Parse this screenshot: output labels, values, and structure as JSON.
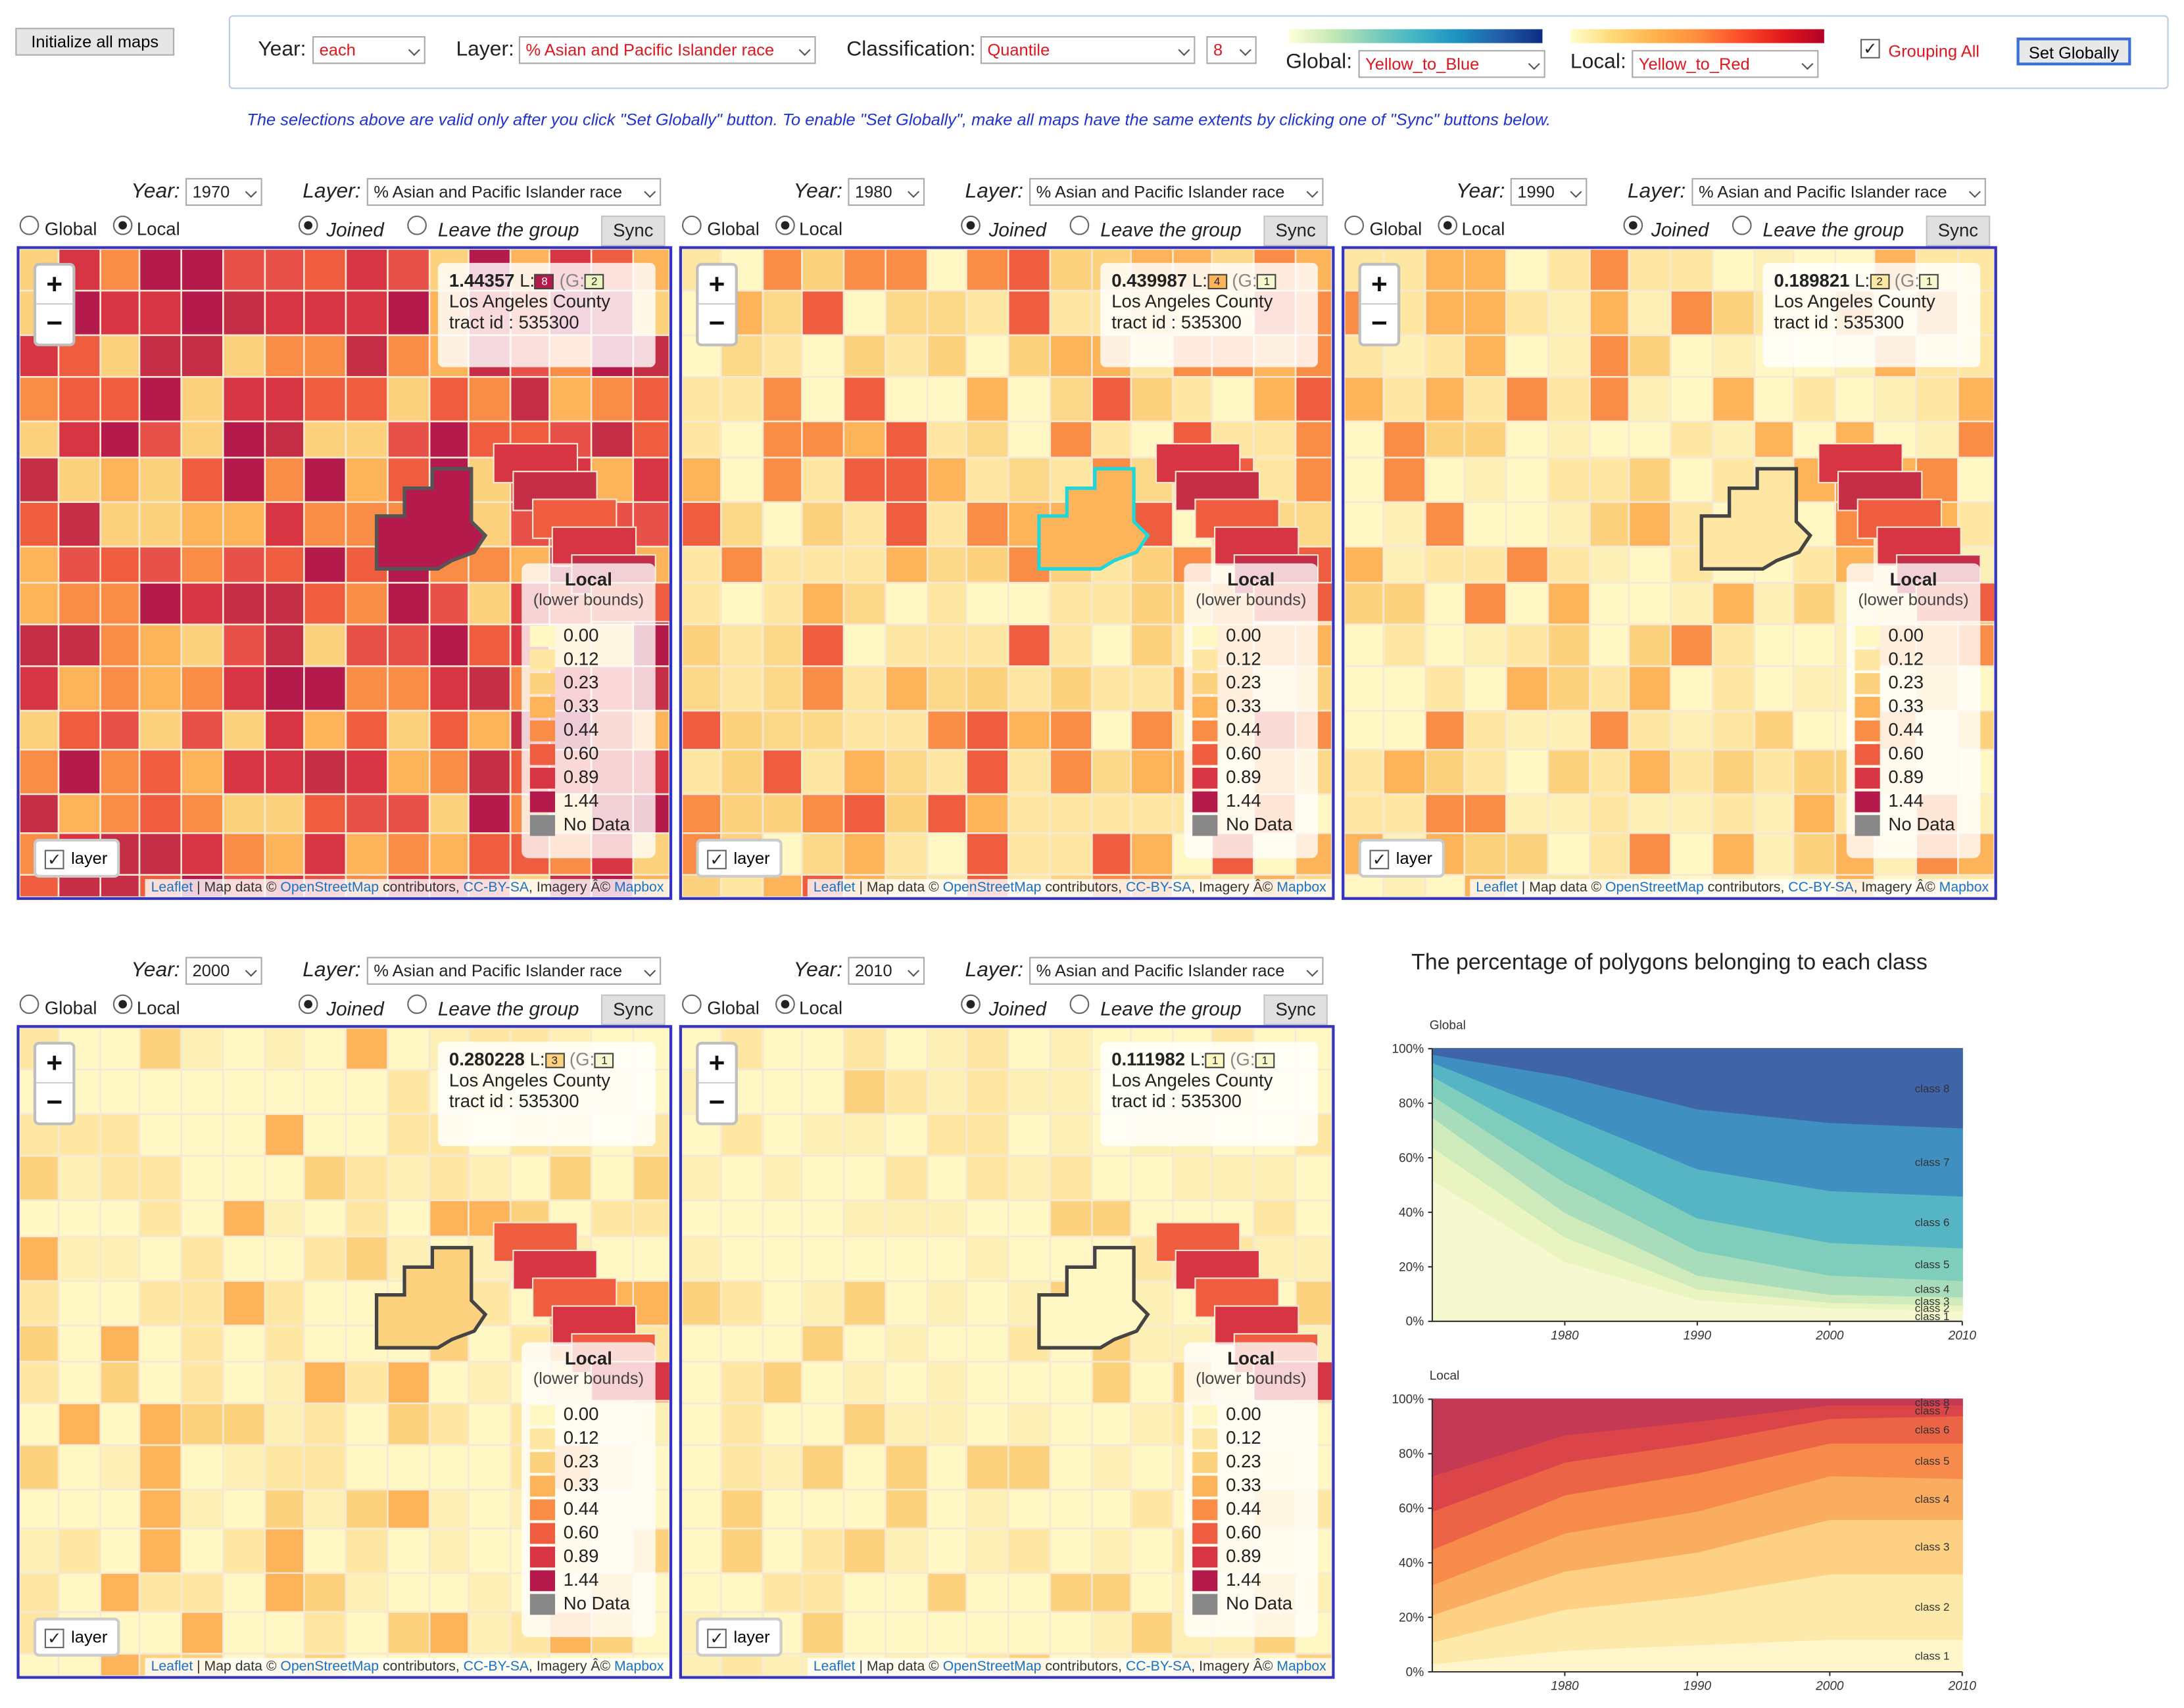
{
  "top": {
    "init_button": "Initialize all maps",
    "year_label": "Year:",
    "year_value": "each",
    "layer_label": "Layer:",
    "layer_value": "% Asian and Pacific Islander race",
    "class_label": "Classification:",
    "class_value": "Quantile",
    "class_count": "8",
    "global_label": "Global:",
    "global_value": "Yellow_to_Blue",
    "local_label": "Local:",
    "local_value": "Yellow_to_Red",
    "grouping_label": "Grouping All",
    "set_button": "Set Globally",
    "note": "The selections above are valid only after you click \"Set Globally\" button. To enable \"Set Globally\", make all maps have the same extents by clicking one of \"Sync\" buttons below."
  },
  "common": {
    "year_label": "Year:",
    "layer_label": "Layer:",
    "layer_value": "% Asian and Pacific Islander race",
    "global_radio": "Global",
    "local_radio": "Local",
    "joined_radio": "Joined",
    "leave_radio": "Leave the group",
    "sync_button": "Sync",
    "layer_control": "layer",
    "legend_title": "Local",
    "legend_subtitle": "(lower bounds)",
    "legend_values": [
      "0.00",
      "0.12",
      "0.23",
      "0.33",
      "0.44",
      "0.60",
      "0.89",
      "1.44",
      "No Data"
    ],
    "legend_colors": [
      "#fff7c4",
      "#fde7a3",
      "#fdd27e",
      "#fcb35a",
      "#f98d47",
      "#ee5d3f",
      "#d73543",
      "#b41b4c",
      "#888888"
    ],
    "info_county": "Los Angeles County",
    "info_tract": "tract id : 535300",
    "info_L": "L:",
    "info_G": "(G:",
    "attr_leaflet": "Leaflet",
    "attr_mid": " | Map data © ",
    "attr_osm": "OpenStreetMap",
    "attr_contrib": " contributors, ",
    "attr_cc": "CC-BY-SA",
    "attr_img": ", Imagery Â© ",
    "attr_mapbox": "Mapbox"
  },
  "maps": [
    {
      "year": "1970",
      "value": "1.44357",
      "l_class": "8",
      "g_class": "2"
    },
    {
      "year": "1980",
      "value": "0.439987",
      "l_class": "4",
      "g_class": "1"
    },
    {
      "year": "1990",
      "value": "0.189821",
      "l_class": "2",
      "g_class": "1"
    },
    {
      "year": "2000",
      "value": "0.280228",
      "l_class": "3",
      "g_class": "1"
    },
    {
      "year": "2010",
      "value": "0.111982",
      "l_class": "1",
      "g_class": "1"
    }
  ],
  "chart_data": [
    {
      "type": "area",
      "title": "The percentage of polygons belonging to each class",
      "subtitle": "Global",
      "x": [
        1970,
        1980,
        1990,
        2000,
        2010
      ],
      "ylim": [
        0,
        100
      ],
      "yticks": [
        "0%",
        "20%",
        "40%",
        "60%",
        "80%",
        "100%"
      ],
      "xticks": [
        "1980",
        "1990",
        "2000",
        "2010"
      ],
      "series": [
        {
          "name": "class 1",
          "values": [
            52,
            22,
            8,
            5,
            4
          ]
        },
        {
          "name": "class 2",
          "values": [
            12,
            9,
            4,
            2,
            2
          ]
        },
        {
          "name": "class 3",
          "values": [
            11,
            9,
            5,
            3,
            3
          ]
        },
        {
          "name": "class 4",
          "values": [
            8,
            11,
            9,
            7,
            6
          ]
        },
        {
          "name": "class 5",
          "values": [
            7,
            12,
            12,
            12,
            12
          ]
        },
        {
          "name": "class 6",
          "values": [
            5,
            13,
            18,
            19,
            19
          ]
        },
        {
          "name": "class 7",
          "values": [
            3,
            14,
            22,
            25,
            25
          ]
        },
        {
          "name": "class 8",
          "values": [
            2,
            10,
            22,
            27,
            29
          ]
        }
      ],
      "colors": [
        "#f6f9cf",
        "#e9f4c0",
        "#cfebbb",
        "#a9dcbb",
        "#7fcdbb",
        "#56b5c5",
        "#3f90c0",
        "#3f64a8"
      ]
    },
    {
      "type": "area",
      "subtitle": "Local",
      "x": [
        1970,
        1980,
        1990,
        2000,
        2010
      ],
      "ylim": [
        0,
        100
      ],
      "yticks": [
        "0%",
        "20%",
        "40%",
        "60%",
        "80%",
        "100%"
      ],
      "xticks": [
        "1980",
        "1990",
        "2000",
        "2010"
      ],
      "series": [
        {
          "name": "class 1",
          "values": [
            3,
            8,
            10,
            12,
            12
          ]
        },
        {
          "name": "class 2",
          "values": [
            8,
            15,
            18,
            24,
            24
          ]
        },
        {
          "name": "class 3",
          "values": [
            10,
            14,
            16,
            20,
            20
          ]
        },
        {
          "name": "class 4",
          "values": [
            11,
            14,
            15,
            16,
            15
          ]
        },
        {
          "name": "class 5",
          "values": [
            13,
            14,
            14,
            12,
            13
          ]
        },
        {
          "name": "class 6",
          "values": [
            14,
            12,
            11,
            9,
            10
          ]
        },
        {
          "name": "class 7",
          "values": [
            13,
            10,
            8,
            5,
            4
          ]
        },
        {
          "name": "class 8",
          "values": [
            28,
            13,
            8,
            2,
            2
          ]
        }
      ],
      "colors": [
        "#fff7cb",
        "#fde9a9",
        "#fdd083",
        "#fbad5f",
        "#f78b4b",
        "#ec6446",
        "#db4448",
        "#c43a55"
      ]
    }
  ]
}
